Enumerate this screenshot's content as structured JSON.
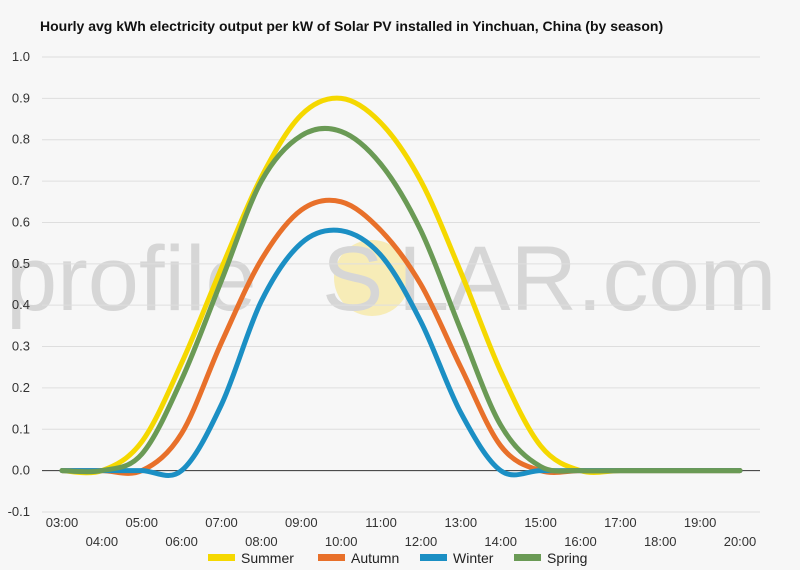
{
  "title": "Hourly avg kWh electricity output per kW of Solar PV installed in Yinchuan, China (by season)",
  "watermark": {
    "left": "profile",
    "middle": "S",
    "right": "LAR.com"
  },
  "chart_data": {
    "type": "line",
    "title": "Hourly avg kWh electricity output per kW of Solar PV installed in Yinchuan, China (by season)",
    "xlabel": "",
    "ylabel": "",
    "x": [
      "03:00",
      "04:00",
      "05:00",
      "06:00",
      "07:00",
      "08:00",
      "09:00",
      "10:00",
      "11:00",
      "12:00",
      "13:00",
      "14:00",
      "15:00",
      "16:00",
      "17:00",
      "18:00",
      "19:00",
      "20:00"
    ],
    "ylim": [
      -0.1,
      1.0
    ],
    "yticks": [
      "-0.1",
      "0.0",
      "0.1",
      "0.2",
      "0.3",
      "0.4",
      "0.5",
      "0.6",
      "0.7",
      "0.8",
      "0.9",
      "1.0"
    ],
    "grid": true,
    "legend_position": "bottom",
    "series": [
      {
        "name": "Summer",
        "color": "#f5d800",
        "values": [
          0.0,
          0.0,
          0.07,
          0.26,
          0.49,
          0.71,
          0.86,
          0.9,
          0.84,
          0.7,
          0.48,
          0.24,
          0.06,
          0.0,
          0.0,
          0.0,
          0.0,
          0.0
        ]
      },
      {
        "name": "Autumn",
        "color": "#e8702a",
        "values": [
          0.0,
          0.0,
          0.0,
          0.09,
          0.31,
          0.51,
          0.63,
          0.65,
          0.58,
          0.45,
          0.25,
          0.06,
          0.0,
          0.0,
          0.0,
          0.0,
          0.0,
          0.0
        ]
      },
      {
        "name": "Winter",
        "color": "#1b8fc4",
        "values": [
          0.0,
          0.0,
          0.0,
          0.0,
          0.16,
          0.41,
          0.55,
          0.58,
          0.52,
          0.36,
          0.14,
          0.0,
          0.0,
          0.0,
          0.0,
          0.0,
          0.0,
          0.0
        ]
      },
      {
        "name": "Spring",
        "color": "#6a9a55",
        "values": [
          0.0,
          0.0,
          0.04,
          0.22,
          0.46,
          0.7,
          0.81,
          0.82,
          0.74,
          0.58,
          0.34,
          0.11,
          0.01,
          0.0,
          0.0,
          0.0,
          0.0,
          0.0
        ]
      }
    ]
  }
}
